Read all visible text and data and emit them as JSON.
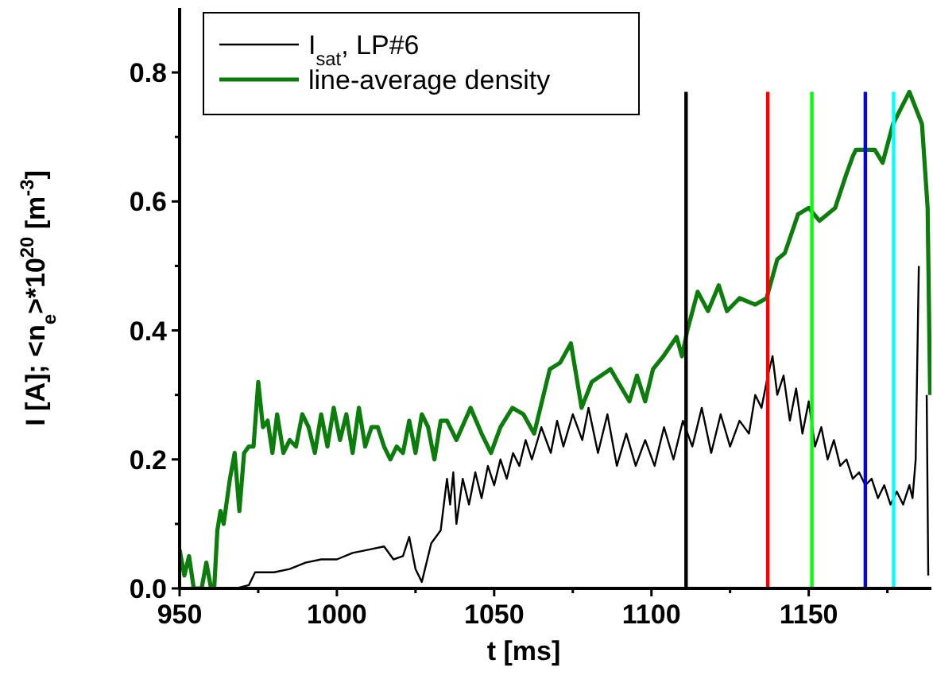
{
  "chart_data": {
    "type": "line",
    "xlabel": "t [ms]",
    "ylabel": "I [A]; <n$_{e}$>*10$^{20}$ [m$^{-3}$]",
    "xlim": [
      950,
      1189
    ],
    "ylim": [
      0,
      0.9
    ],
    "xticks": [
      950,
      {
        "value": 975,
        "label": null
      },
      1000,
      {
        "value": 1025,
        "label": null
      },
      1050,
      {
        "value": 1075,
        "label": null
      },
      1100,
      {
        "value": 1125,
        "label": null
      },
      1150,
      {
        "value": 1175,
        "label": null
      }
    ],
    "yticks": [
      "0.0",
      {
        "value": 0.1,
        "label": null
      },
      {
        "value": 0.2,
        "label": "0.2"
      },
      {
        "value": 0.3,
        "label": null
      },
      {
        "value": 0.4,
        "label": "0.4"
      },
      {
        "value": 0.5,
        "label": null
      },
      {
        "value": 0.6,
        "label": "0.6"
      },
      {
        "value": 0.7,
        "label": null
      },
      {
        "value": 0.8,
        "label": "0.8"
      }
    ],
    "legend": "top left",
    "grid": false,
    "series": [
      {
        "name": "I$_{sat}$, LP#6",
        "color": "#000000",
        "x": [
          950,
          960,
          968,
          972,
          974,
          980,
          985,
          990,
          995,
          1000,
          1005,
          1010,
          1015,
          1018,
          1021,
          1023,
          1025,
          1027,
          1030,
          1033,
          1035,
          1036,
          1037,
          1038,
          1040,
          1042,
          1044,
          1046,
          1048,
          1050,
          1052,
          1054,
          1056,
          1058,
          1060,
          1062,
          1065,
          1068,
          1070,
          1072,
          1075,
          1078,
          1080,
          1083,
          1086,
          1089,
          1092,
          1095,
          1098,
          1101,
          1104,
          1107,
          1110,
          1113,
          1116,
          1119,
          1122,
          1125,
          1128,
          1131,
          1133,
          1135,
          1137,
          1138.5,
          1140,
          1142,
          1144,
          1146,
          1148,
          1150,
          1152,
          1154,
          1156,
          1158,
          1160,
          1162,
          1164,
          1166,
          1168,
          1170,
          1172,
          1174,
          1176,
          1178,
          1180,
          1182,
          1183,
          1184,
          1185,
          1185.5,
          1186.5,
          1187.5,
          1188
        ],
        "values": [
          0,
          0,
          0,
          0.005,
          0.025,
          0.025,
          0.03,
          0.04,
          0.045,
          0.045,
          0.055,
          0.06,
          0.065,
          0.045,
          0.05,
          0.08,
          0.03,
          0.01,
          0.07,
          0.09,
          0.17,
          0.13,
          0.18,
          0.1,
          0.17,
          0.13,
          0.18,
          0.14,
          0.19,
          0.16,
          0.2,
          0.17,
          0.21,
          0.19,
          0.23,
          0.2,
          0.25,
          0.21,
          0.26,
          0.22,
          0.27,
          0.23,
          0.28,
          0.21,
          0.27,
          0.19,
          0.24,
          0.19,
          0.23,
          0.19,
          0.25,
          0.2,
          0.26,
          0.22,
          0.28,
          0.21,
          0.27,
          0.22,
          0.26,
          0.24,
          0.3,
          0.28,
          0.33,
          0.36,
          0.3,
          0.33,
          0.26,
          0.31,
          0.24,
          0.29,
          0.22,
          0.25,
          0.2,
          0.23,
          0.19,
          0.2,
          0.17,
          0.18,
          0.16,
          0.17,
          0.14,
          0.16,
          0.13,
          0.15,
          0.13,
          0.16,
          0.14,
          0.2,
          0.5,
          null,
          null,
          0.3,
          0.02
        ]
      },
      {
        "name": "line-average density",
        "color": "#0b7d0b",
        "x": [
          950,
          951.5,
          953,
          954.5,
          957,
          958.5,
          960,
          961,
          962,
          963,
          964,
          966,
          967.5,
          969,
          970.5,
          972,
          973.5,
          975,
          976.5,
          978,
          979.5,
          981,
          983,
          985,
          987,
          989,
          991,
          993,
          995,
          997,
          999,
          1001,
          1003,
          1005,
          1007,
          1009,
          1011,
          1013,
          1015,
          1017,
          1019,
          1021,
          1023,
          1025,
          1027,
          1029,
          1031,
          1033,
          1035,
          1038,
          1042.5,
          1046,
          1049,
          1052,
          1055.8,
          1059.3,
          1062.7,
          1067.7,
          1071,
          1074.4,
          1077.8,
          1081,
          1087,
          1093,
          1095.4,
          1098,
          1100.5,
          1103.8,
          1108,
          1109.7,
          1111.4,
          1114.7,
          1118,
          1121.4,
          1124,
          1128,
          1133,
          1136.6,
          1140,
          1142.4,
          1146.6,
          1150,
          1153.4,
          1158.4,
          1161.8,
          1164,
          1165,
          1168.4,
          1171,
          1173.5,
          1176.8,
          1182,
          1186,
          1187.8,
          1188.6
        ],
        "values": [
          0.06,
          0.02,
          0.05,
          0,
          0,
          0.04,
          0,
          0,
          0.09,
          0.12,
          0.1,
          0.17,
          0.21,
          0.12,
          0.21,
          0.22,
          0.22,
          0.32,
          0.25,
          0.26,
          0.21,
          0.27,
          0.21,
          0.23,
          0.22,
          0.27,
          0.25,
          0.21,
          0.27,
          0.22,
          0.28,
          0.23,
          0.27,
          0.21,
          0.28,
          0.22,
          0.25,
          0.25,
          0.22,
          0.2,
          0.22,
          0.21,
          0.26,
          0.21,
          0.27,
          0.25,
          0.2,
          0.26,
          0.26,
          0.23,
          0.28,
          0.24,
          0.21,
          0.25,
          0.28,
          0.27,
          0.24,
          0.34,
          0.35,
          0.38,
          0.28,
          0.32,
          0.34,
          0.29,
          0.33,
          0.29,
          0.34,
          0.36,
          0.39,
          0.36,
          0.4,
          0.46,
          0.43,
          0.47,
          0.43,
          0.45,
          0.44,
          0.45,
          0.51,
          0.52,
          0.58,
          0.59,
          0.57,
          0.59,
          0.64,
          0.67,
          0.68,
          0.68,
          0.68,
          0.66,
          0.72,
          0.77,
          0.72,
          0.59,
          0.3
        ]
      },
      {
        "color": "#000000",
        "x": [
          1111,
          1111
        ],
        "values": [
          0,
          0.77
        ]
      },
      {
        "color": "#ff0000",
        "x": [
          1137,
          1137
        ],
        "values": [
          0,
          0.77
        ]
      },
      {
        "color": "#00ff00",
        "x": [
          1151,
          1151
        ],
        "values": [
          0,
          0.77
        ]
      },
      {
        "color": "#0000ff",
        "x": [
          1168,
          1168
        ],
        "values": [
          0,
          0.77
        ]
      },
      {
        "color": "#00ffff",
        "x": [
          1177,
          1177
        ],
        "values": [
          0,
          0.77
        ]
      }
    ]
  }
}
